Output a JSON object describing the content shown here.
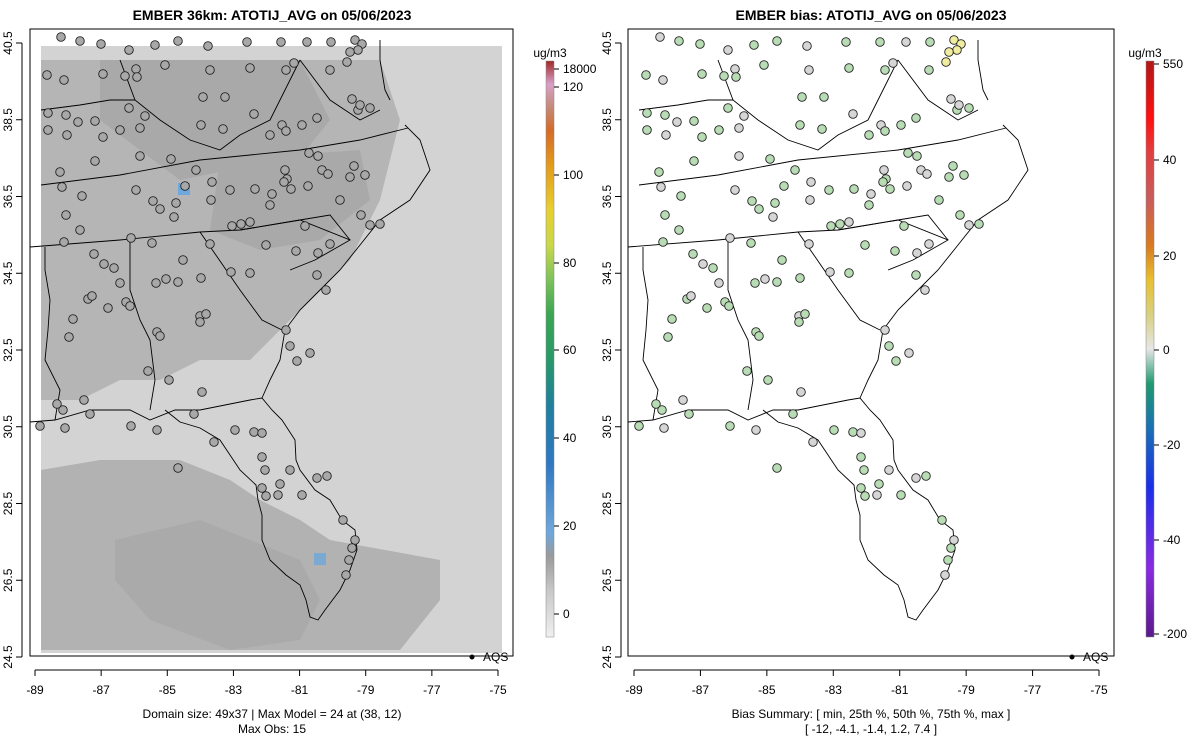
{
  "panels": [
    {
      "title": "EMBER 36km: ATOTIJ_AVG on 05/06/2023",
      "footer": [
        "Domain size: 49x37 | Max Model = 24 at (38, 12)",
        "Max Obs: 15"
      ],
      "legend_label": "AQS",
      "colorbar": {
        "unit": "ug/m3",
        "ticks": [
          "18000",
          "120",
          "100",
          "80",
          "60",
          "40",
          "20",
          "0"
        ]
      }
    },
    {
      "title": "EMBER bias: ATOTIJ_AVG on 05/06/2023",
      "footer": [
        "Bias Summary: [ min, 25th %, 50th %, 75th %, max ]",
        "[ -12,   -4.1,   -1.4,   1.2,   7.4 ]"
      ],
      "legend_label": "AQS",
      "colorbar": {
        "unit": "ug/m3",
        "ticks": [
          "550",
          "40",
          "20",
          "0",
          "-20",
          "-40",
          "-200"
        ]
      }
    }
  ],
  "axes": {
    "x_ticks": [
      "-89",
      "-87",
      "-85",
      "-83",
      "-81",
      "-79",
      "-77",
      "-75"
    ],
    "y_ticks": [
      "40.5",
      "38.5",
      "36.5",
      "34.5",
      "32.5",
      "30.5",
      "28.5",
      "26.5",
      "24.5"
    ],
    "lon_range": [
      -89,
      -75
    ],
    "lat_range": [
      24.5,
      40.5
    ]
  },
  "colors": {
    "model_field": "#b4b4b4",
    "model_field_light": "#d4d4d4",
    "model_field_dark": "#a9a9a9",
    "model_hotspot": "#6fa8dc",
    "station_model": "#a8a8a8",
    "station_bias_low": "#b8dcb4",
    "station_bias_mid": "#d6d6d6",
    "station_bias_high": "#f0eda0"
  }
}
